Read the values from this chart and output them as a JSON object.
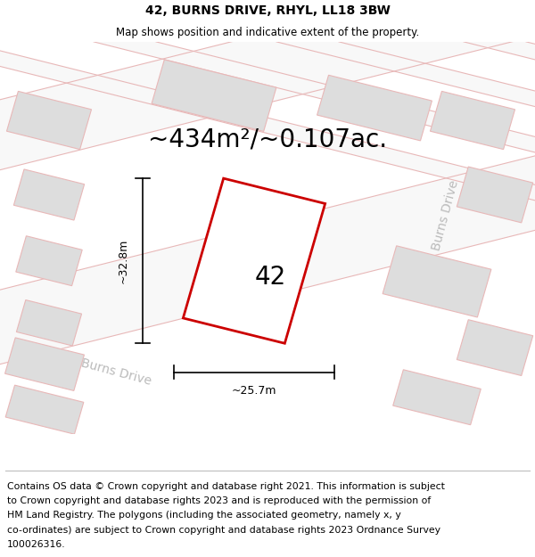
{
  "title": "42, BURNS DRIVE, RHYL, LL18 3BW",
  "subtitle": "Map shows position and indicative extent of the property.",
  "area_text": "~434m²/~0.107ac.",
  "dim_width": "~25.7m",
  "dim_height": "~32.8m",
  "label_42": "42",
  "label_burns_drive_bottom": "Burns Drive",
  "label_burns_drive_right": "Burns Drive",
  "footer_lines": [
    "Contains OS data © Crown copyright and database right 2021. This information is subject",
    "to Crown copyright and database rights 2023 and is reproduced with the permission of",
    "HM Land Registry. The polygons (including the associated geometry, namely x, y",
    "co-ordinates) are subject to Crown copyright and database rights 2023 Ordnance Survey",
    "100026316."
  ],
  "map_bg": "#eeeeee",
  "road_fill": "#f8f8f8",
  "road_stroke": "#e8b8b8",
  "plot_stroke": "#cc0000",
  "plot_fill": "#ffffff",
  "building_fill": "#dddddd",
  "building_stroke": "#e8b8b8",
  "title_fontsize": 10,
  "subtitle_fontsize": 8.5,
  "area_fontsize": 20,
  "label_fontsize": 20,
  "dim_fontsize": 9,
  "road_label_fontsize": 10,
  "footer_fontsize": 7.8
}
